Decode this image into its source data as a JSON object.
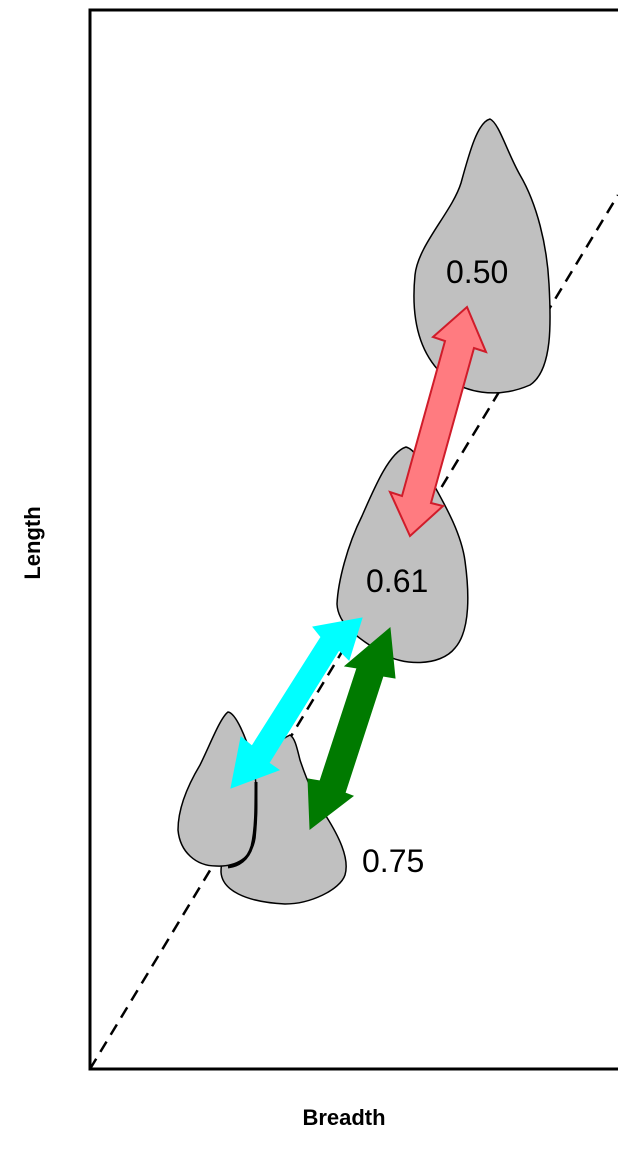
{
  "axes": {
    "x_label": "Breadth",
    "y_label": "Length"
  },
  "shapes": [
    {
      "id": "tooth-top",
      "label": "0.50"
    },
    {
      "id": "tooth-middle",
      "label": "0.61"
    },
    {
      "id": "tooth-bottom",
      "label": "0.75"
    }
  ],
  "colors": {
    "shape_fill": "#c0c0c0",
    "red_arrow": "#ff7b80",
    "cyan_arrow": "#00ffff",
    "green_arrow": "#007a00",
    "dashed_line": "#000000"
  },
  "icons": {
    "red_arrow": "double-arrow-icon",
    "cyan_arrow": "double-arrow-icon",
    "green_arrow": "double-arrow-icon"
  }
}
